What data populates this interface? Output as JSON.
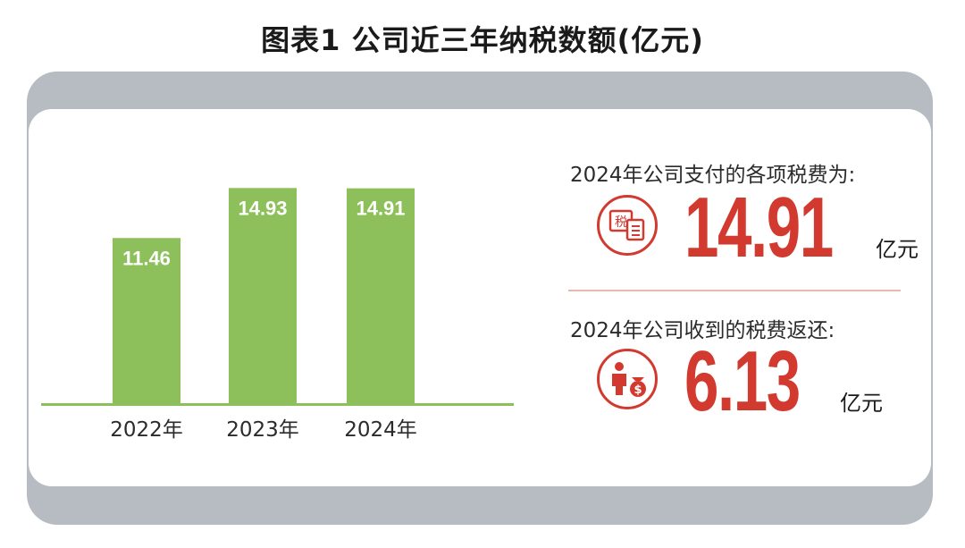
{
  "title": "图表1  公司近三年纳税数额(亿元)",
  "colors": {
    "bar": "#8dc05a",
    "accent": "#d33a2f",
    "frame": "#b7bcc2"
  },
  "chart_data": {
    "type": "bar",
    "title": "图表1  公司近三年纳税数额(亿元)",
    "categories": [
      "2022年",
      "2023年",
      "2024年"
    ],
    "values": [
      11.46,
      14.93,
      14.91
    ],
    "data_labels": [
      "11.46",
      "14.93",
      "14.91"
    ],
    "unit": "亿元",
    "ylim": [
      0,
      16.5
    ],
    "grid": false,
    "legend": "none"
  },
  "stats": [
    {
      "label": "2024年公司支付的各项税费为:",
      "value": "14.91",
      "unit": "亿元",
      "icon": "tax-document-icon",
      "icon_text": "税"
    },
    {
      "label": "2024年公司收到的税费返还:",
      "value": "6.13",
      "unit": "亿元",
      "icon": "person-moneybag-icon",
      "icon_text": "$"
    }
  ]
}
